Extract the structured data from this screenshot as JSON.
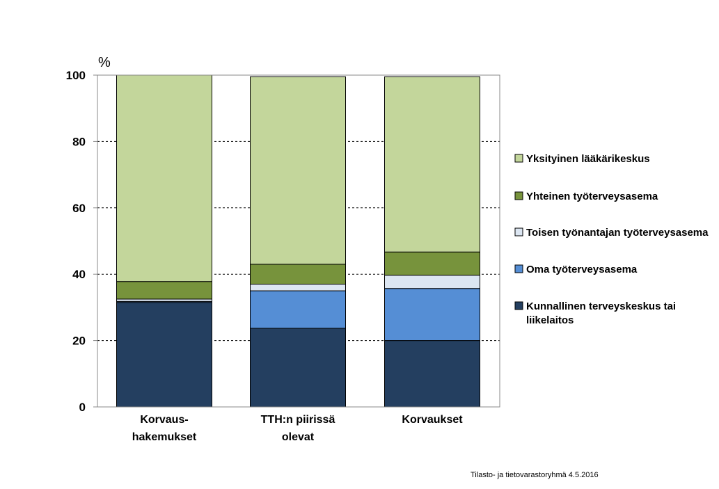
{
  "chart_data": {
    "type": "bar",
    "stacked": true,
    "unit_label": "%",
    "ylim": [
      0,
      100
    ],
    "yticks": [
      0,
      20,
      40,
      60,
      80,
      100
    ],
    "grid": true,
    "legend_position": "right",
    "categories": [
      [
        "Korvaus-",
        "hakemukset"
      ],
      [
        "TTH:n piirissä",
        "olevat"
      ],
      [
        "Korvaukset"
      ]
    ],
    "series": [
      {
        "name": [
          "Kunnallinen terveyskeskus tai",
          "liikelaitos"
        ],
        "color": "#243F60",
        "values": [
          31.5,
          23.7,
          20.0
        ]
      },
      {
        "name": [
          "Oma työterveysasema"
        ],
        "color": "#558ED5",
        "values": [
          0.3,
          11.3,
          15.7
        ]
      },
      {
        "name": [
          "Toisen työnantajan työterveysasema"
        ],
        "color": "#DCE6F2",
        "values": [
          0.7,
          2.0,
          4.0
        ]
      },
      {
        "name": [
          "Yhteinen työterveysasema"
        ],
        "color": "#77933C",
        "values": [
          5.3,
          6.0,
          7.0
        ]
      },
      {
        "name": [
          "Yksityinen lääkärikeskus"
        ],
        "color": "#C3D69B",
        "values": [
          62.2,
          56.5,
          52.8
        ]
      }
    ],
    "footnote": "Tilasto- ja tietovarastoryhmä 4.5.2016"
  }
}
